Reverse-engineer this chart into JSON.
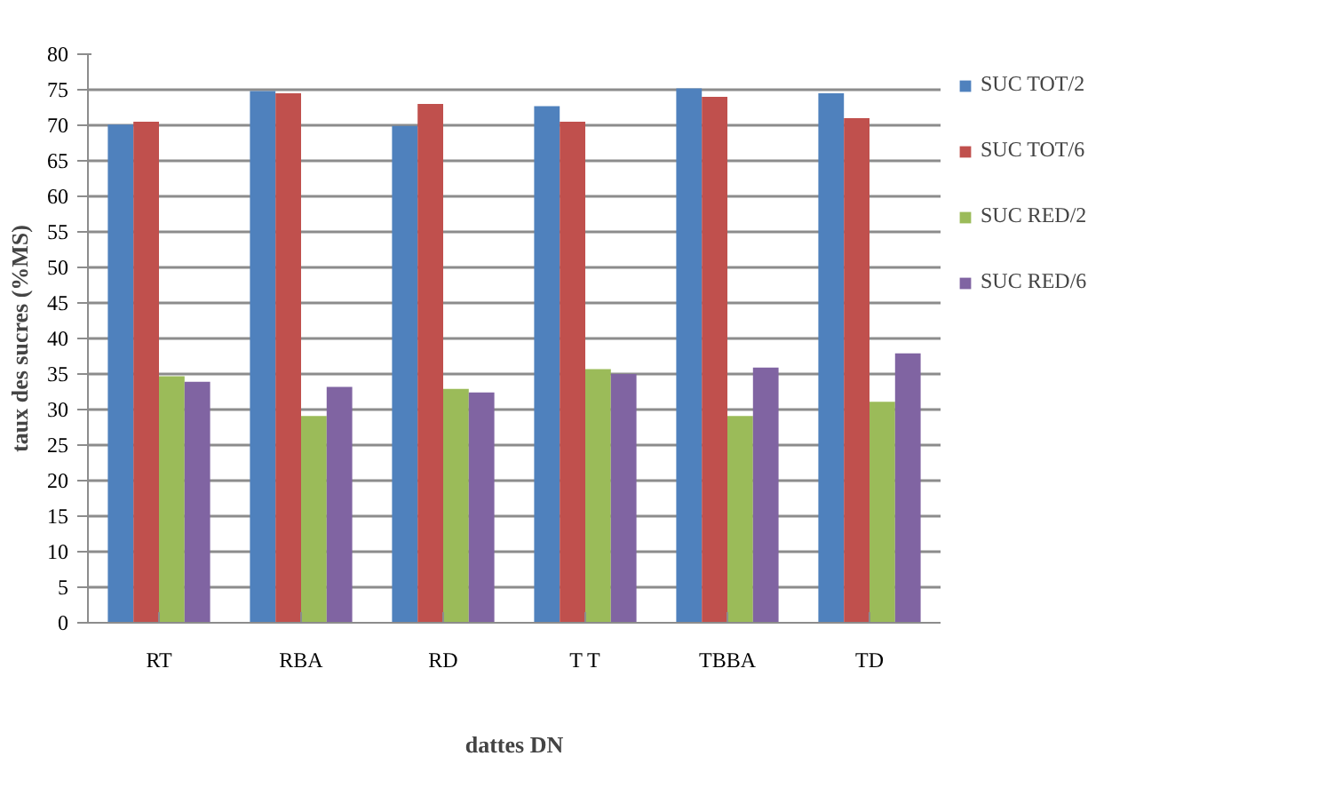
{
  "chart_data": {
    "type": "bar",
    "xlabel": "dattes DN",
    "ylabel": "taux des sucres (%MS)",
    "categories": [
      "RT",
      "RBA",
      "RD",
      "T T",
      "TBBA",
      "TD"
    ],
    "series": [
      {
        "name": "SUC TOT/2",
        "color": "#4f81bd",
        "values": [
          70.1,
          74.8,
          69.9,
          72.7,
          75.2,
          74.5
        ]
      },
      {
        "name": "SUC TOT/6",
        "color": "#c0504d",
        "values": [
          70.5,
          74.5,
          73.0,
          70.5,
          74.0,
          71.0
        ]
      },
      {
        "name": "SUC RED/2",
        "color": "#9bbb59",
        "values": [
          34.7,
          29.1,
          32.9,
          35.7,
          29.1,
          31.1
        ]
      },
      {
        "name": "SUC RED/6",
        "color": "#8064a2",
        "values": [
          33.9,
          33.2,
          32.4,
          35.0,
          35.9,
          37.9
        ]
      }
    ],
    "ylim": [
      0,
      80
    ],
    "yticks": [
      0,
      5,
      10,
      15,
      20,
      25,
      30,
      35,
      40,
      45,
      50,
      55,
      60,
      65,
      70,
      75,
      80
    ],
    "grid": "y",
    "legend": "right"
  }
}
